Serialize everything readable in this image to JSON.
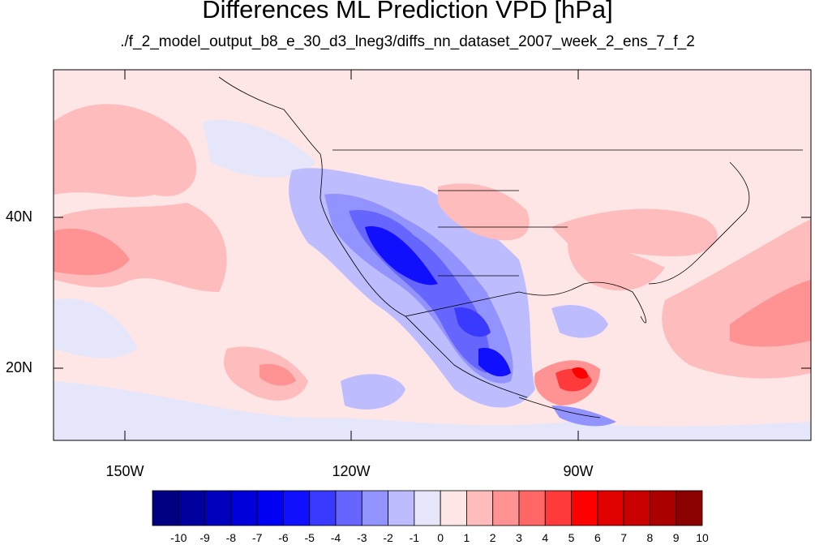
{
  "title": "Differences ML Prediction VPD [hPa]",
  "subtitle": "./f_2_model_output_b8_e_30_d3_lneg3/diffs_nn_dataset_2007_week_2_ens_7_f_2",
  "axes": {
    "lat_ticks": [
      "40N",
      "20N"
    ],
    "lon_ticks": [
      "150W",
      "120W",
      "90W"
    ]
  },
  "colorbar": {
    "labels": [
      "-10",
      "-9",
      "-8",
      "-7",
      "-6",
      "-5",
      "-4",
      "-3",
      "-2",
      "-1",
      "0",
      "1",
      "2",
      "3",
      "4",
      "5",
      "6",
      "7",
      "8",
      "9",
      "10"
    ],
    "colors": [
      "#000080",
      "#00009e",
      "#0000bd",
      "#0000db",
      "#0000f5",
      "#1010ff",
      "#3a3aff",
      "#6666ff",
      "#9393ff",
      "#bcbcff",
      "#e6e6fa",
      "#ffe6e6",
      "#ffbcbc",
      "#ff9393",
      "#ff6666",
      "#ff3a3a",
      "#ff0000",
      "#e00000",
      "#c80000",
      "#aa0000",
      "#8b0000"
    ]
  }
}
